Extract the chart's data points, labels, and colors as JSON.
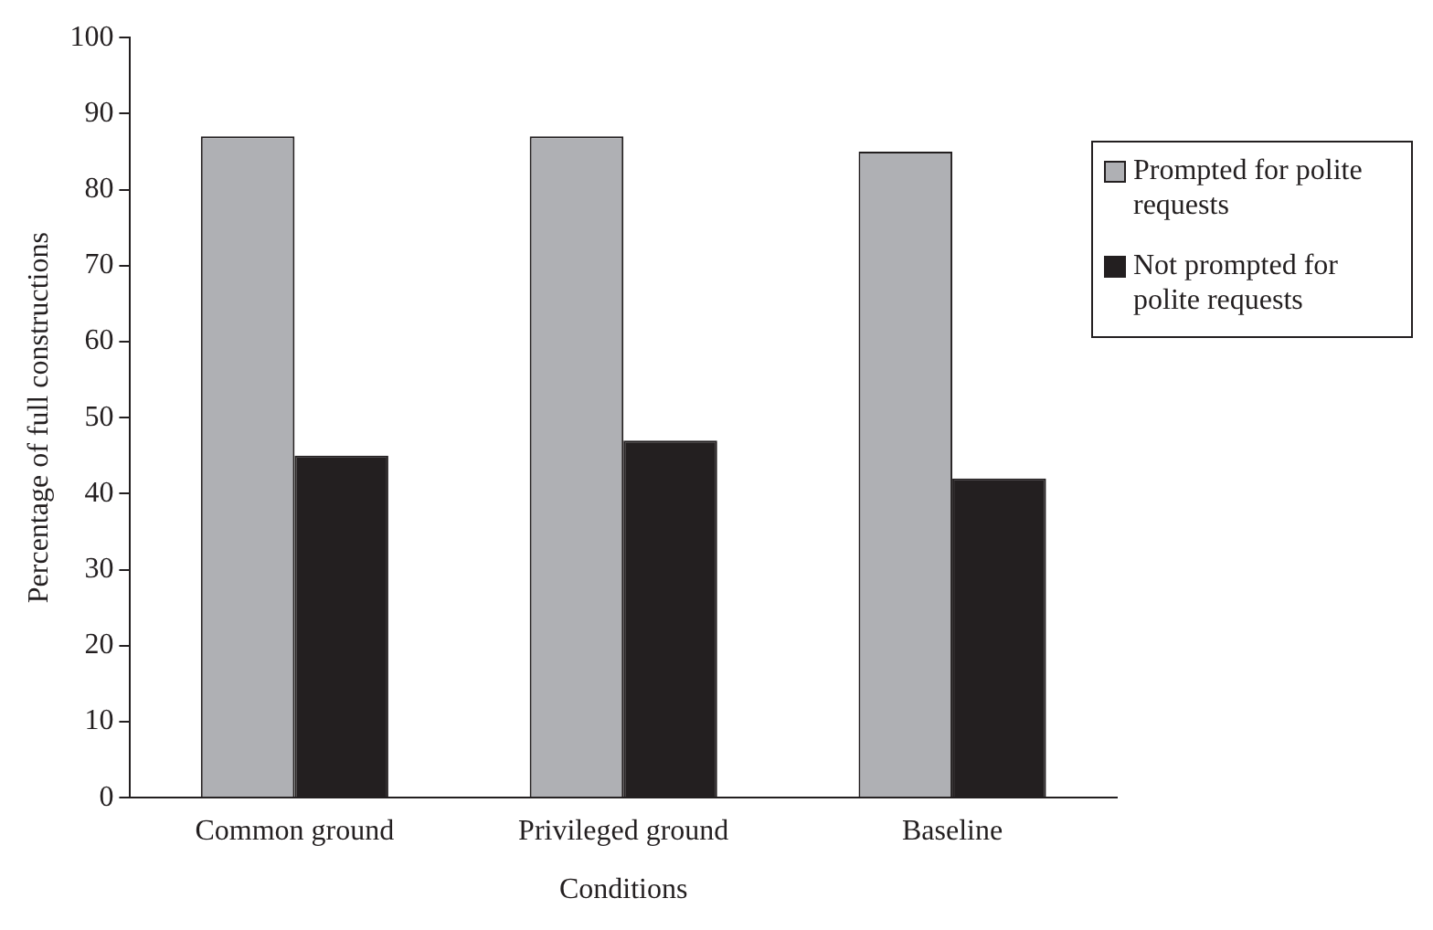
{
  "chart_data": {
    "type": "bar",
    "xlabel": "Conditions",
    "ylabel": "Percentage of full constructions",
    "categories": [
      "Common ground",
      "Privileged ground",
      "Baseline"
    ],
    "series": [
      {
        "name": "Prompted for polite requests",
        "color": "#afb0b4",
        "values": [
          87,
          87,
          85
        ]
      },
      {
        "name": "Not prompted for polite requests",
        "color": "#231f20",
        "values": [
          45,
          47,
          42
        ]
      }
    ],
    "ylim": [
      0,
      100
    ],
    "yticks": [
      0,
      10,
      20,
      30,
      40,
      50,
      60,
      70,
      80,
      90,
      100
    ],
    "grid": false,
    "legend": "right"
  }
}
